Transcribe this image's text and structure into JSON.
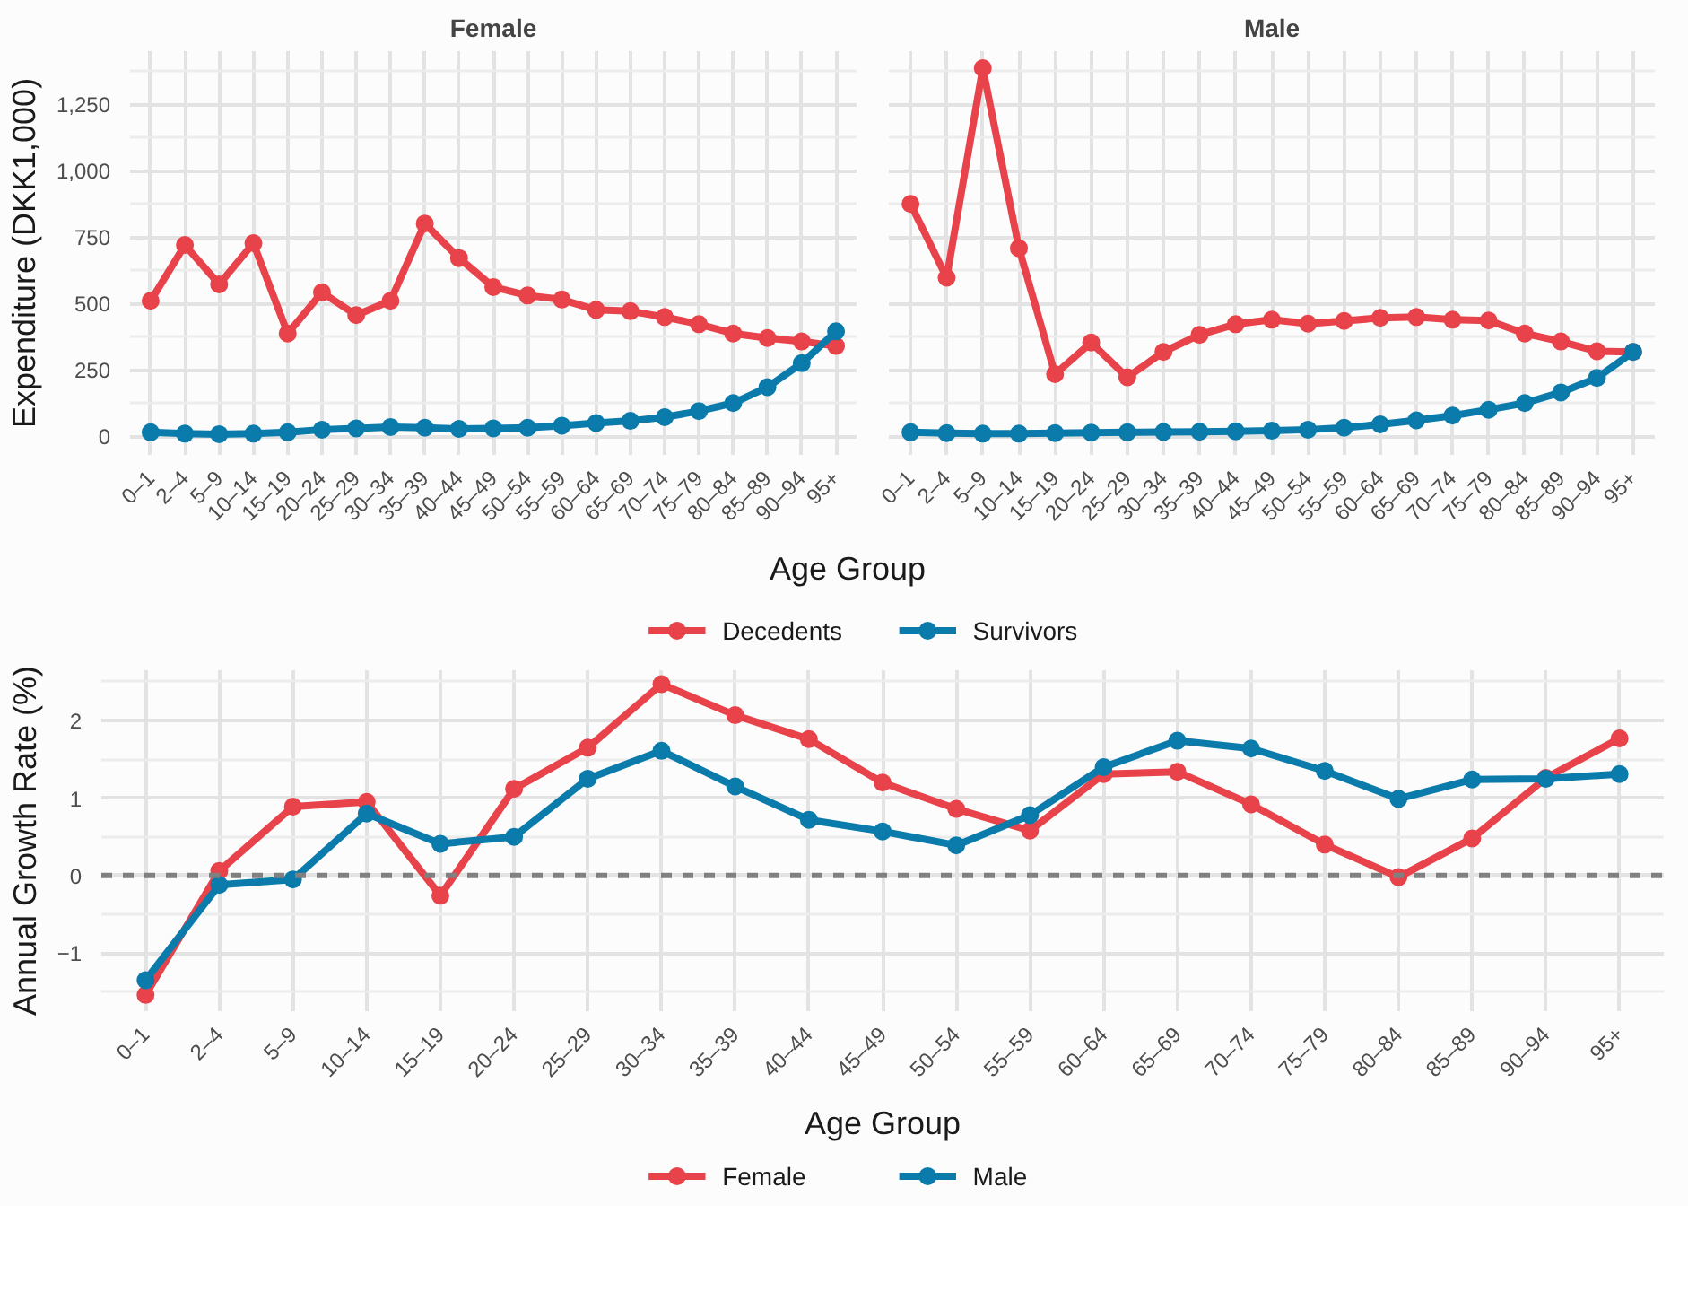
{
  "chart_data": [
    {
      "type": "line",
      "title": "Female",
      "ylabel": "Expenditure (DKK1,000)",
      "xlabel": "Age Group",
      "legend": "bottom",
      "grid": true,
      "marker": "circle",
      "line_style": "solid",
      "categories": [
        "0–1",
        "2–4",
        "5–9",
        "10–14",
        "15–19",
        "20–24",
        "25–29",
        "30–34",
        "35–39",
        "40–44",
        "45–49",
        "50–54",
        "55–59",
        "60–64",
        "65–69",
        "70–74",
        "75–79",
        "80–84",
        "85–89",
        "90–94",
        "95+"
      ],
      "ylim": [
        -70,
        1450
      ],
      "yticks": [
        0,
        250,
        500,
        750,
        {
          "value": 1000,
          "label": "1,000"
        },
        {
          "value": 1250,
          "label": "1,250"
        }
      ],
      "series": [
        {
          "name": "Decedents",
          "color": "#e8434a",
          "values": [
            510,
            720,
            572,
            727,
            387,
            542,
            456,
            510,
            801,
            671,
            562,
            530,
            515,
            476,
            471,
            449,
            422,
            387,
            370,
            357,
            340
          ]
        },
        {
          "name": "Survivors",
          "color": "#0a7bab",
          "values": [
            15,
            10,
            8,
            10,
            15,
            25,
            30,
            35,
            32,
            28,
            30,
            32,
            40,
            50,
            58,
            72,
            95,
            125,
            185,
            275,
            395
          ]
        }
      ]
    },
    {
      "type": "line",
      "title": "Male",
      "tick_labels": "x",
      "grid": true,
      "marker": "circle",
      "line_style": "solid",
      "categories": [
        "0–1",
        "2–4",
        "5–9",
        "10–14",
        "15–19",
        "20–24",
        "25–29",
        "30–34",
        "35–39",
        "40–44",
        "45–49",
        "50–54",
        "55–59",
        "60–64",
        "65–69",
        "70–74",
        "75–79",
        "80–84",
        "85–89",
        "90–94",
        "95+"
      ],
      "ylim": [
        -70,
        1450
      ],
      "yticks": [
        0,
        250,
        500,
        750,
        1000,
        1250
      ],
      "series": [
        {
          "color": "#e8434a",
          "values": [
            875,
            597,
            1386,
            708,
            234,
            353,
            222,
            318,
            382,
            422,
            439,
            424,
            434,
            446,
            449,
            439,
            436,
            387,
            357,
            320,
            318
          ]
        },
        {
          "color": "#0a7bab",
          "values": [
            15,
            12,
            10,
            10,
            12,
            14,
            15,
            16,
            17,
            19,
            21,
            25,
            32,
            45,
            60,
            78,
            100,
            125,
            165,
            220,
            318
          ]
        }
      ]
    },
    {
      "type": "line",
      "ylabel": "Annual Growth Rate (%)",
      "xlabel": "Age Group",
      "legend": "bottom",
      "grid": true,
      "marker": "circle",
      "line_style": "solid",
      "categories": [
        "0–1",
        "2–4",
        "5–9",
        "10–14",
        "15–19",
        "20–24",
        "25–29",
        "30–34",
        "35–39",
        "40–44",
        "45–49",
        "50–54",
        "55–59",
        "60–64",
        "65–69",
        "70–74",
        "75–79",
        "80–84",
        "85–89",
        "90–94",
        "95+"
      ],
      "ylim": [
        -1.75,
        2.65
      ],
      "yticks": [
        {
          "value": -1,
          "label": "−1"
        },
        0,
        1,
        2
      ],
      "ref_lines": [
        {
          "axis": "y",
          "value": 0,
          "color": "#808080",
          "line_style": "dashed"
        }
      ],
      "series": [
        {
          "name": "Female",
          "color": "#e8434a",
          "values": [
            -1.54,
            0.06,
            0.89,
            0.95,
            -0.26,
            1.12,
            1.65,
            2.47,
            2.07,
            1.76,
            1.2,
            0.86,
            0.58,
            1.31,
            1.34,
            0.92,
            0.4,
            -0.02,
            0.48,
            1.26,
            1.77
          ]
        },
        {
          "name": "Male",
          "color": "#0a7bab",
          "values": [
            -1.35,
            -0.12,
            -0.05,
            0.8,
            0.41,
            0.5,
            1.25,
            1.61,
            1.15,
            0.72,
            0.57,
            0.39,
            0.78,
            1.4,
            1.74,
            1.64,
            1.35,
            0.99,
            1.24,
            1.25,
            1.31
          ]
        }
      ]
    }
  ]
}
